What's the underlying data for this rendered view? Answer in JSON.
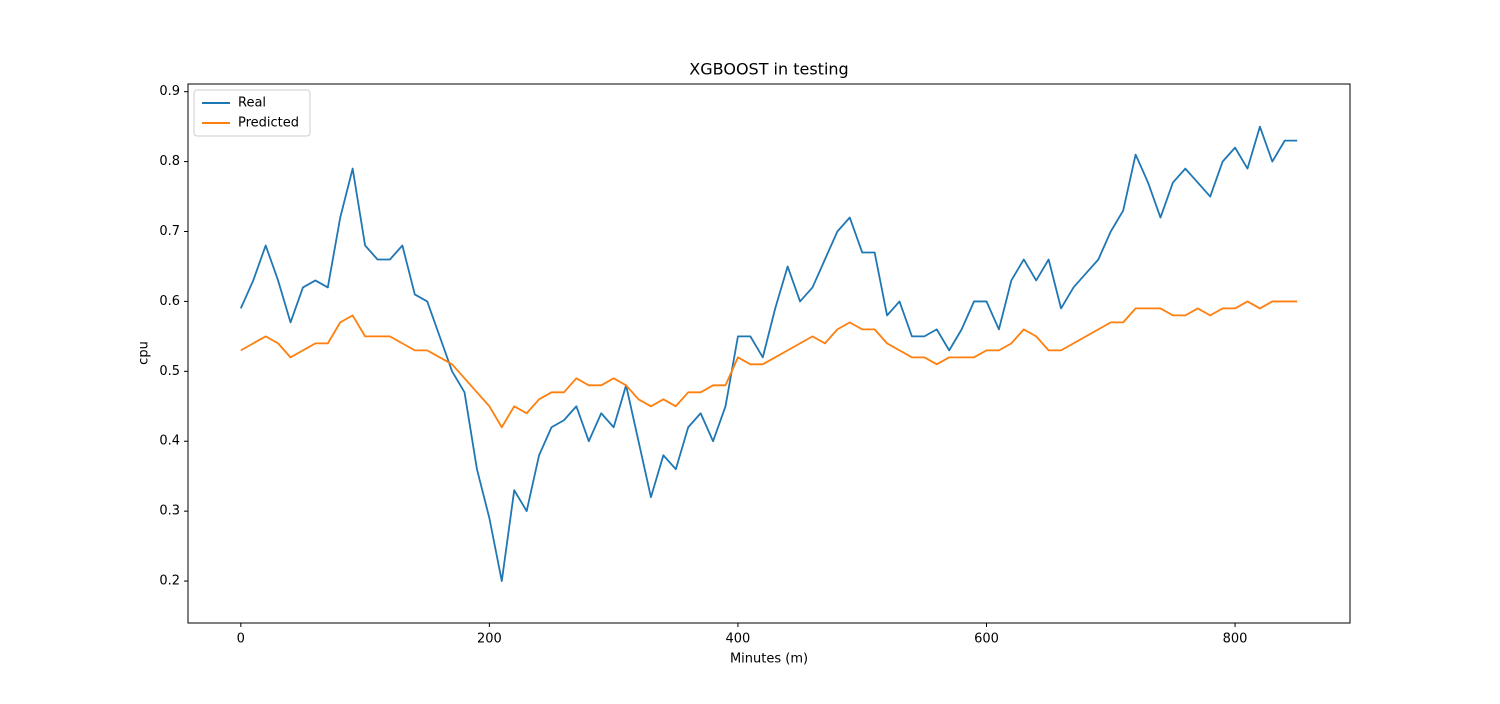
{
  "chart_data": {
    "type": "line",
    "title": "XGBOOST in testing",
    "x_label": "Minutes (m)",
    "y_label": "cpu",
    "x": [
      0,
      10,
      20,
      30,
      40,
      50,
      60,
      70,
      80,
      90,
      100,
      110,
      120,
      130,
      140,
      150,
      160,
      170,
      180,
      190,
      200,
      210,
      220,
      230,
      240,
      250,
      260,
      270,
      280,
      290,
      300,
      310,
      320,
      330,
      340,
      350,
      360,
      370,
      380,
      390,
      400,
      410,
      420,
      430,
      440,
      450,
      460,
      470,
      480,
      490,
      500,
      510,
      520,
      530,
      540,
      550,
      560,
      570,
      580,
      590,
      600,
      610,
      620,
      630,
      640,
      650,
      660,
      670,
      680,
      690,
      700,
      710,
      720,
      730,
      740,
      750,
      760,
      770,
      780,
      790,
      800,
      810,
      820,
      830,
      840,
      850
    ],
    "series": [
      {
        "name": "Real",
        "color": "#1f77b4",
        "values": [
          0.59,
          0.63,
          0.68,
          0.63,
          0.57,
          0.62,
          0.63,
          0.62,
          0.72,
          0.79,
          0.68,
          0.66,
          0.66,
          0.68,
          0.61,
          0.6,
          0.55,
          0.5,
          0.47,
          0.36,
          0.29,
          0.2,
          0.33,
          0.3,
          0.38,
          0.42,
          0.43,
          0.45,
          0.4,
          0.44,
          0.42,
          0.48,
          0.4,
          0.32,
          0.38,
          0.36,
          0.42,
          0.44,
          0.4,
          0.45,
          0.55,
          0.55,
          0.52,
          0.59,
          0.65,
          0.6,
          0.62,
          0.66,
          0.7,
          0.72,
          0.67,
          0.67,
          0.58,
          0.6,
          0.55,
          0.55,
          0.56,
          0.53,
          0.56,
          0.6,
          0.6,
          0.56,
          0.63,
          0.66,
          0.63,
          0.66,
          0.59,
          0.62,
          0.64,
          0.66,
          0.7,
          0.73,
          0.81,
          0.77,
          0.72,
          0.77,
          0.79,
          0.77,
          0.75,
          0.8,
          0.82,
          0.79,
          0.85,
          0.8,
          0.83,
          0.83
        ]
      },
      {
        "name": "Predicted",
        "color": "#ff7f0e",
        "values": [
          0.53,
          0.54,
          0.55,
          0.54,
          0.52,
          0.53,
          0.54,
          0.54,
          0.57,
          0.58,
          0.55,
          0.55,
          0.55,
          0.54,
          0.53,
          0.53,
          0.52,
          0.51,
          0.49,
          0.47,
          0.45,
          0.42,
          0.45,
          0.44,
          0.46,
          0.47,
          0.47,
          0.49,
          0.48,
          0.48,
          0.49,
          0.48,
          0.46,
          0.45,
          0.46,
          0.45,
          0.47,
          0.47,
          0.48,
          0.48,
          0.52,
          0.51,
          0.51,
          0.52,
          0.53,
          0.54,
          0.55,
          0.54,
          0.56,
          0.57,
          0.56,
          0.56,
          0.54,
          0.53,
          0.52,
          0.52,
          0.51,
          0.52,
          0.52,
          0.52,
          0.53,
          0.53,
          0.54,
          0.56,
          0.55,
          0.53,
          0.53,
          0.54,
          0.55,
          0.56,
          0.57,
          0.57,
          0.59,
          0.59,
          0.59,
          0.58,
          0.58,
          0.59,
          0.58,
          0.59,
          0.59,
          0.6,
          0.59,
          0.6,
          0.6,
          0.6
        ]
      }
    ],
    "xlim": [
      -42.5,
      892.5
    ],
    "xticks": [
      0,
      200,
      400,
      600,
      800
    ],
    "ylim": [
      0.14,
      0.911
    ],
    "yticks": [
      0.2,
      0.3,
      0.4,
      0.5,
      0.6,
      0.7,
      0.8,
      0.9
    ],
    "grid": false,
    "legend": "upper-left"
  }
}
